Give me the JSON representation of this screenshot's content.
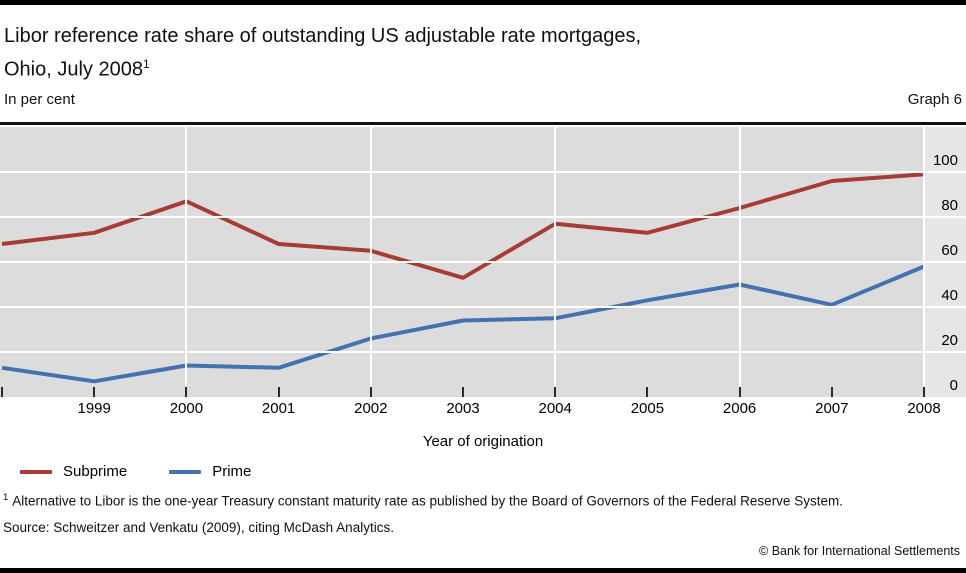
{
  "header": {
    "title_line1": "Libor reference rate share of outstanding US adjustable rate mortgages,",
    "title_line2": "Ohio, July 2008",
    "title_footnote_marker": "1",
    "unit_label": "In per cent",
    "graph_label": "Graph 6"
  },
  "chart_data": {
    "type": "line",
    "x": [
      1998,
      1999,
      2000,
      2001,
      2002,
      2003,
      2004,
      2005,
      2006,
      2007,
      2008
    ],
    "xtick_labels": [
      "1999",
      "2000",
      "2001",
      "2002",
      "2003",
      "2004",
      "2005",
      "2006",
      "2007",
      "2008"
    ],
    "series": [
      {
        "name": "Subprime",
        "color": "#a63c35",
        "values": [
          68,
          73,
          87,
          68,
          65,
          53,
          77,
          73,
          84,
          96,
          99
        ]
      },
      {
        "name": "Prime",
        "color": "#4472b0",
        "values": [
          13,
          7,
          14,
          13,
          26,
          34,
          35,
          43,
          50,
          41,
          58
        ]
      }
    ],
    "xlabel": "Year of origination",
    "ylabel": "In per cent",
    "ylim": [
      0,
      120
    ],
    "yticks": [
      0,
      20,
      40,
      60,
      80,
      100
    ],
    "grid": "on",
    "gridline_color": "#ffffff",
    "plot_background": "#dcdcdc",
    "label_strip_background": "#e6e6e6",
    "legend_position": "bottom-left"
  },
  "footnotes": {
    "marker": "1",
    "text": "Alternative to Libor is the one-year Treasury constant maturity rate as published by the Board of Governors of the Federal Reserve System.",
    "source": "Source: Schweitzer and Venkatu (2009), citing McDash Analytics."
  },
  "footer": {
    "copyright": "© Bank for International Settlements"
  }
}
